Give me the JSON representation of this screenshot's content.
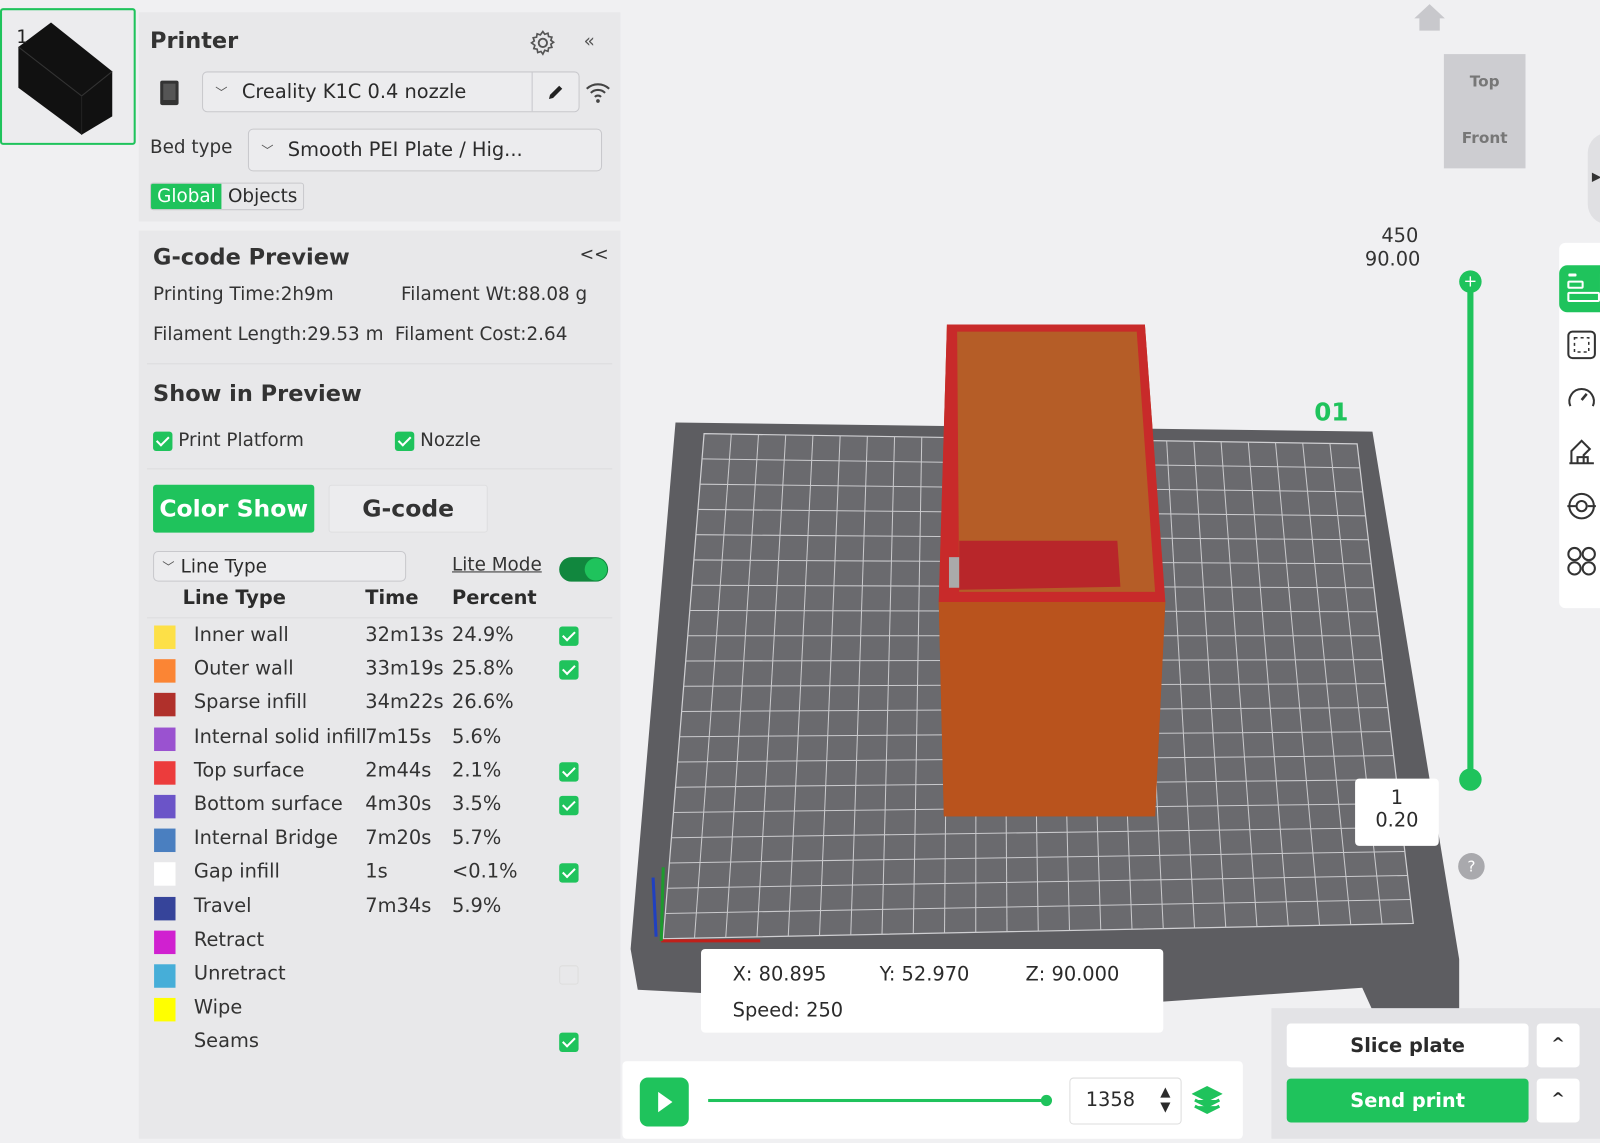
{
  "plate": {
    "number": "1"
  },
  "printer": {
    "title": "Printer",
    "model": "Creality K1C 0.4 nozzle",
    "bed_type_label": "Bed type",
    "bed_type": "Smooth PEI Plate / Hig...",
    "tabs": [
      {
        "label": "Global",
        "active": true
      },
      {
        "label": "Objects",
        "active": false
      }
    ]
  },
  "gcode_preview": {
    "title": "G-code Preview",
    "collapse": "<<",
    "printing_time": "Printing Time:2h9m",
    "filament_wt": "Filament Wt:88.08 g",
    "filament_length": "Filament Length:29.53 m",
    "filament_cost": "Filament Cost:2.64",
    "show_title": "Show in Preview",
    "print_platform": {
      "label": "Print Platform",
      "checked": true
    },
    "nozzle": {
      "label": "Nozzle",
      "checked": true
    },
    "color_show": "Color Show",
    "gcode_btn": "G-code",
    "view_type": "Line Type",
    "lite_mode": {
      "label": "Lite Mode",
      "on": true
    },
    "columns": [
      "Line Type",
      "Time",
      "Percent"
    ],
    "rows": [
      {
        "name": "Inner wall",
        "time": "32m13s",
        "percent": "24.9%",
        "color": "#fde047",
        "checked": true
      },
      {
        "name": "Outer wall",
        "time": "33m19s",
        "percent": "25.8%",
        "color": "#fb8534",
        "checked": true
      },
      {
        "name": "Sparse infill",
        "time": "34m22s",
        "percent": "26.6%",
        "color": "#b0302b",
        "checked": null
      },
      {
        "name": "Internal solid infill",
        "time": "7m15s",
        "percent": "5.6%",
        "color": "#9a52d0",
        "checked": null
      },
      {
        "name": "Top surface",
        "time": "2m44s",
        "percent": "2.1%",
        "color": "#ec3c3c",
        "checked": true
      },
      {
        "name": "Bottom surface",
        "time": "4m30s",
        "percent": "3.5%",
        "color": "#6b54c8",
        "checked": true
      },
      {
        "name": "Internal Bridge",
        "time": "7m20s",
        "percent": "5.7%",
        "color": "#4a7fc0",
        "checked": null
      },
      {
        "name": "Gap infill",
        "time": "1s",
        "percent": "<0.1%",
        "color": "#ffffff",
        "checked": true
      },
      {
        "name": "Travel",
        "time": "7m34s",
        "percent": "5.9%",
        "color": "#36449a",
        "checked": null
      },
      {
        "name": "Retract",
        "time": "",
        "percent": "",
        "color": "#d020d0",
        "checked": null
      },
      {
        "name": "Unretract",
        "time": "",
        "percent": "",
        "color": "#46aed8",
        "checked": false
      },
      {
        "name": "Wipe",
        "time": "",
        "percent": "",
        "color": "#ffff00",
        "checked": null
      },
      {
        "name": "Seams",
        "time": "",
        "percent": "",
        "color": "",
        "checked": true
      }
    ]
  },
  "viewport": {
    "cube_top": "Top",
    "cube_front": "Front",
    "plate_label": "01",
    "layer_top": "450",
    "height_top": "90.00",
    "layer_bottom": "1",
    "height_bottom": "0.20",
    "help": "?",
    "position": {
      "x": "X: 80.895",
      "y": "Y: 52.970",
      "z": "Z: 90.000",
      "speed": "Speed: 250"
    },
    "move_value": "1358",
    "move_progress": 1.0
  },
  "actions": {
    "slice": "Slice plate",
    "send": "Send print",
    "more": "^"
  },
  "colors": {
    "accent": "#1fc35c"
  }
}
